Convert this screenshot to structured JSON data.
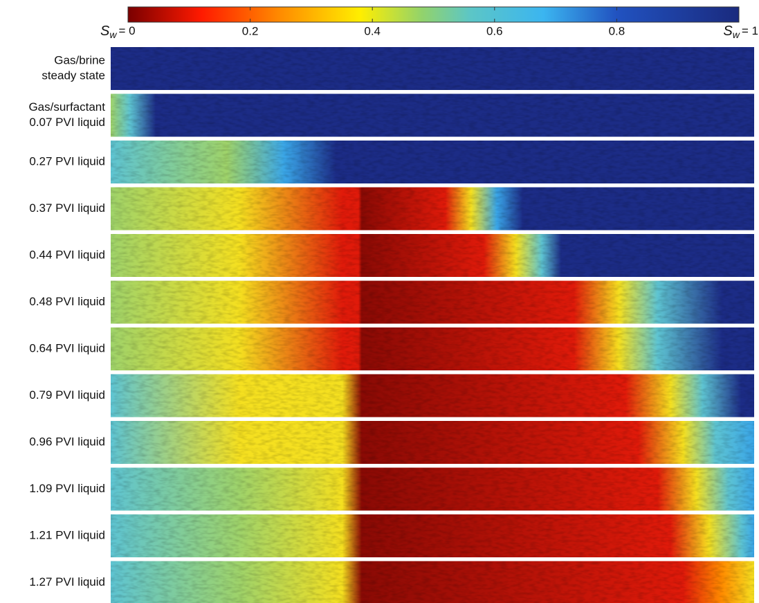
{
  "colorbar": {
    "clim": [
      0,
      1
    ],
    "ticks": [
      0.2,
      0.4,
      0.6,
      0.8
    ],
    "left_label": {
      "symbol": "S",
      "subscript": "w",
      "value": "= 0"
    },
    "right_label": {
      "symbol": "S",
      "subscript": "w",
      "value": "= 1"
    }
  },
  "rows": [
    {
      "lines": [
        "Gas/brine",
        "steady state"
      ]
    },
    {
      "lines": [
        "Gas/surfactant",
        "0.07 PVI liquid"
      ]
    },
    {
      "lines": [
        "0.27 PVI liquid"
      ]
    },
    {
      "lines": [
        "0.37 PVI liquid"
      ]
    },
    {
      "lines": [
        "0.44 PVI liquid"
      ]
    },
    {
      "lines": [
        "0.48 PVI liquid"
      ]
    },
    {
      "lines": [
        "0.64 PVI liquid"
      ]
    },
    {
      "lines": [
        "0.79 PVI liquid"
      ]
    },
    {
      "lines": [
        "0.96 PVI liquid"
      ]
    },
    {
      "lines": [
        "1.09 PVI liquid"
      ]
    },
    {
      "lines": [
        "1.21 PVI liquid"
      ]
    },
    {
      "lines": [
        "1.27 PVI liquid"
      ]
    }
  ]
}
